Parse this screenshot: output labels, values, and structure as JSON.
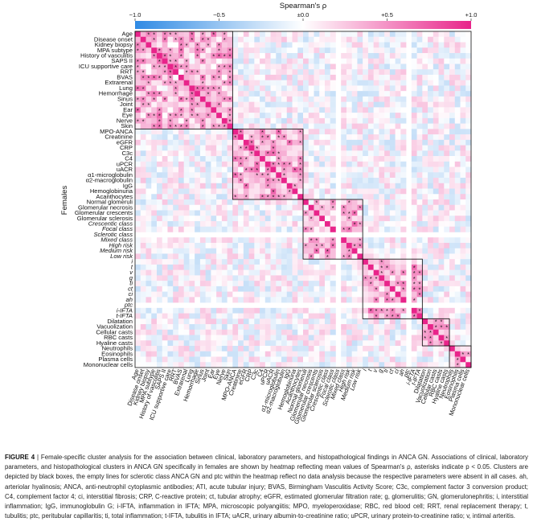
{
  "figure": {
    "colorbar": {
      "title": "Spearman's ρ",
      "ticks": [
        "−1.0",
        "−0.5",
        "±0.0",
        "+0.5",
        "+1.0"
      ],
      "tick_values": [
        -1.0,
        -0.5,
        0.0,
        0.5,
        1.0
      ],
      "low_color": "#2f8ae4",
      "mid_color": "#ffffff",
      "high_color": "#e8248a"
    },
    "y_axis_label": "Females",
    "significance_marker": "*",
    "cluster_box_color": "#000000"
  },
  "chart_data": {
    "type": "heatmap",
    "title": "",
    "ylabel": "Females",
    "value_range": [
      -1.0,
      1.0
    ],
    "variables": [
      "Age",
      "Disease onset",
      "Kidney biopsy",
      "MPA subtype",
      "History of vasculitis",
      "SAPS II",
      "ICU supportive care",
      "RRT",
      "BVAS",
      "Extrarenal",
      "Lung",
      "Hemorrhage",
      "Sinus",
      "Joint",
      "Ear",
      "Eye",
      "Nerve",
      "Skin",
      "MPO-ANCA",
      "Creatinine",
      "eGFR",
      "CRP",
      "C3c",
      "C4",
      "uPCR",
      "uACR",
      "α1-microglobulin",
      "α2-macroglobulin",
      "IgG",
      "Hemoglobinuria",
      "Acanthocytes",
      "Normal glomeruli",
      "Glomerular necrosis",
      "Glomerular crescents",
      "Glomerular sclerosis",
      "Crescentic class",
      "Focal class",
      "Sclerotic class",
      "Mixed class",
      "High risk",
      "Medium risk",
      "Low risk",
      "i",
      "t",
      "v",
      "g",
      "ti",
      "ct",
      "ci",
      "ah",
      "ptc",
      "i-IFTA",
      "t-IFTA",
      "Dilatation",
      "Vacuolization",
      "Cellular casts",
      "RBC casts",
      "Hyaline casts",
      "Neutrophils",
      "Eosinophils",
      "Plasma cells",
      "Mononuclear cells"
    ],
    "italic_variables": [
      "Crescentic class",
      "Focal class",
      "Sclerotic class",
      "Mixed class",
      "High risk",
      "Medium risk",
      "Low risk",
      "i",
      "t",
      "v",
      "g",
      "ti",
      "ct",
      "ci",
      "ah",
      "ptc",
      "i-IFTA",
      "t-IFTA"
    ],
    "clusters": [
      {
        "start": "Age",
        "end": "Skin"
      },
      {
        "start": "MPO-ANCA",
        "end": "Acanthocytes"
      },
      {
        "start": "Normal glomeruli",
        "end": "Low risk"
      },
      {
        "start": "i",
        "end": "t-IFTA"
      },
      {
        "start": "Dilatation",
        "end": "Hyaline casts"
      },
      {
        "start": "Neutrophils",
        "end": "Mononuclear cells"
      }
    ],
    "absent_rows_note": "Empty lines for sclerotic class ANCA GN and ptc: no data available",
    "empty_variables": [
      "Sclerotic class",
      "ptc"
    ]
  },
  "caption": {
    "label": "FIGURE 4",
    "text": "| Female-specific cluster analysis for the association between clinical, laboratory parameters, and histopathological findings in ANCA GN. Associations of clinical, laboratory parameters, and histopathological clusters in ANCA GN specifically in females are shown by heatmap reflecting mean values of Spearman's ρ, asterisks indicate p < 0.05. Clusters are depicted by black boxes, the empty lines for sclerotic class ANCA GN and ptc within the heatmap reflect no data analysis because the respective parameters were absent in all cases. ah, arteriolar hyalinosis; ANCA, anti-neutrophil cytoplasmic antibodies; ATI, acute tubular injury; BVAS, Birmingham Vasculitis Activity Score; C3c, complement factor 3 conversion product; C4, complement factor 4; ci, interstitial fibrosis; CRP, C-reactive protein; ct, tubular atrophy; eGFR, estimated glomerular filtration rate; g, glomerulitis; GN, glomerulonephritis; i, interstitial inflammation; IgG, immunoglobulin G; i-IFTA, inflammation in IFTA; MPA, microscopic polyangiitis; MPO, myeloperoxidase; RBC, red blood cell; RRT, renal replacement therapy; t, tubulitis; ptc, peritubular capillaritis; ti, total inflammation; t-IFTA, tubulitis in IFTA; uACR, urinary albumin-to-creatinine ratio; uPCR, urinary protein-to-creatinine ratio; v, intimal arteritis."
  }
}
